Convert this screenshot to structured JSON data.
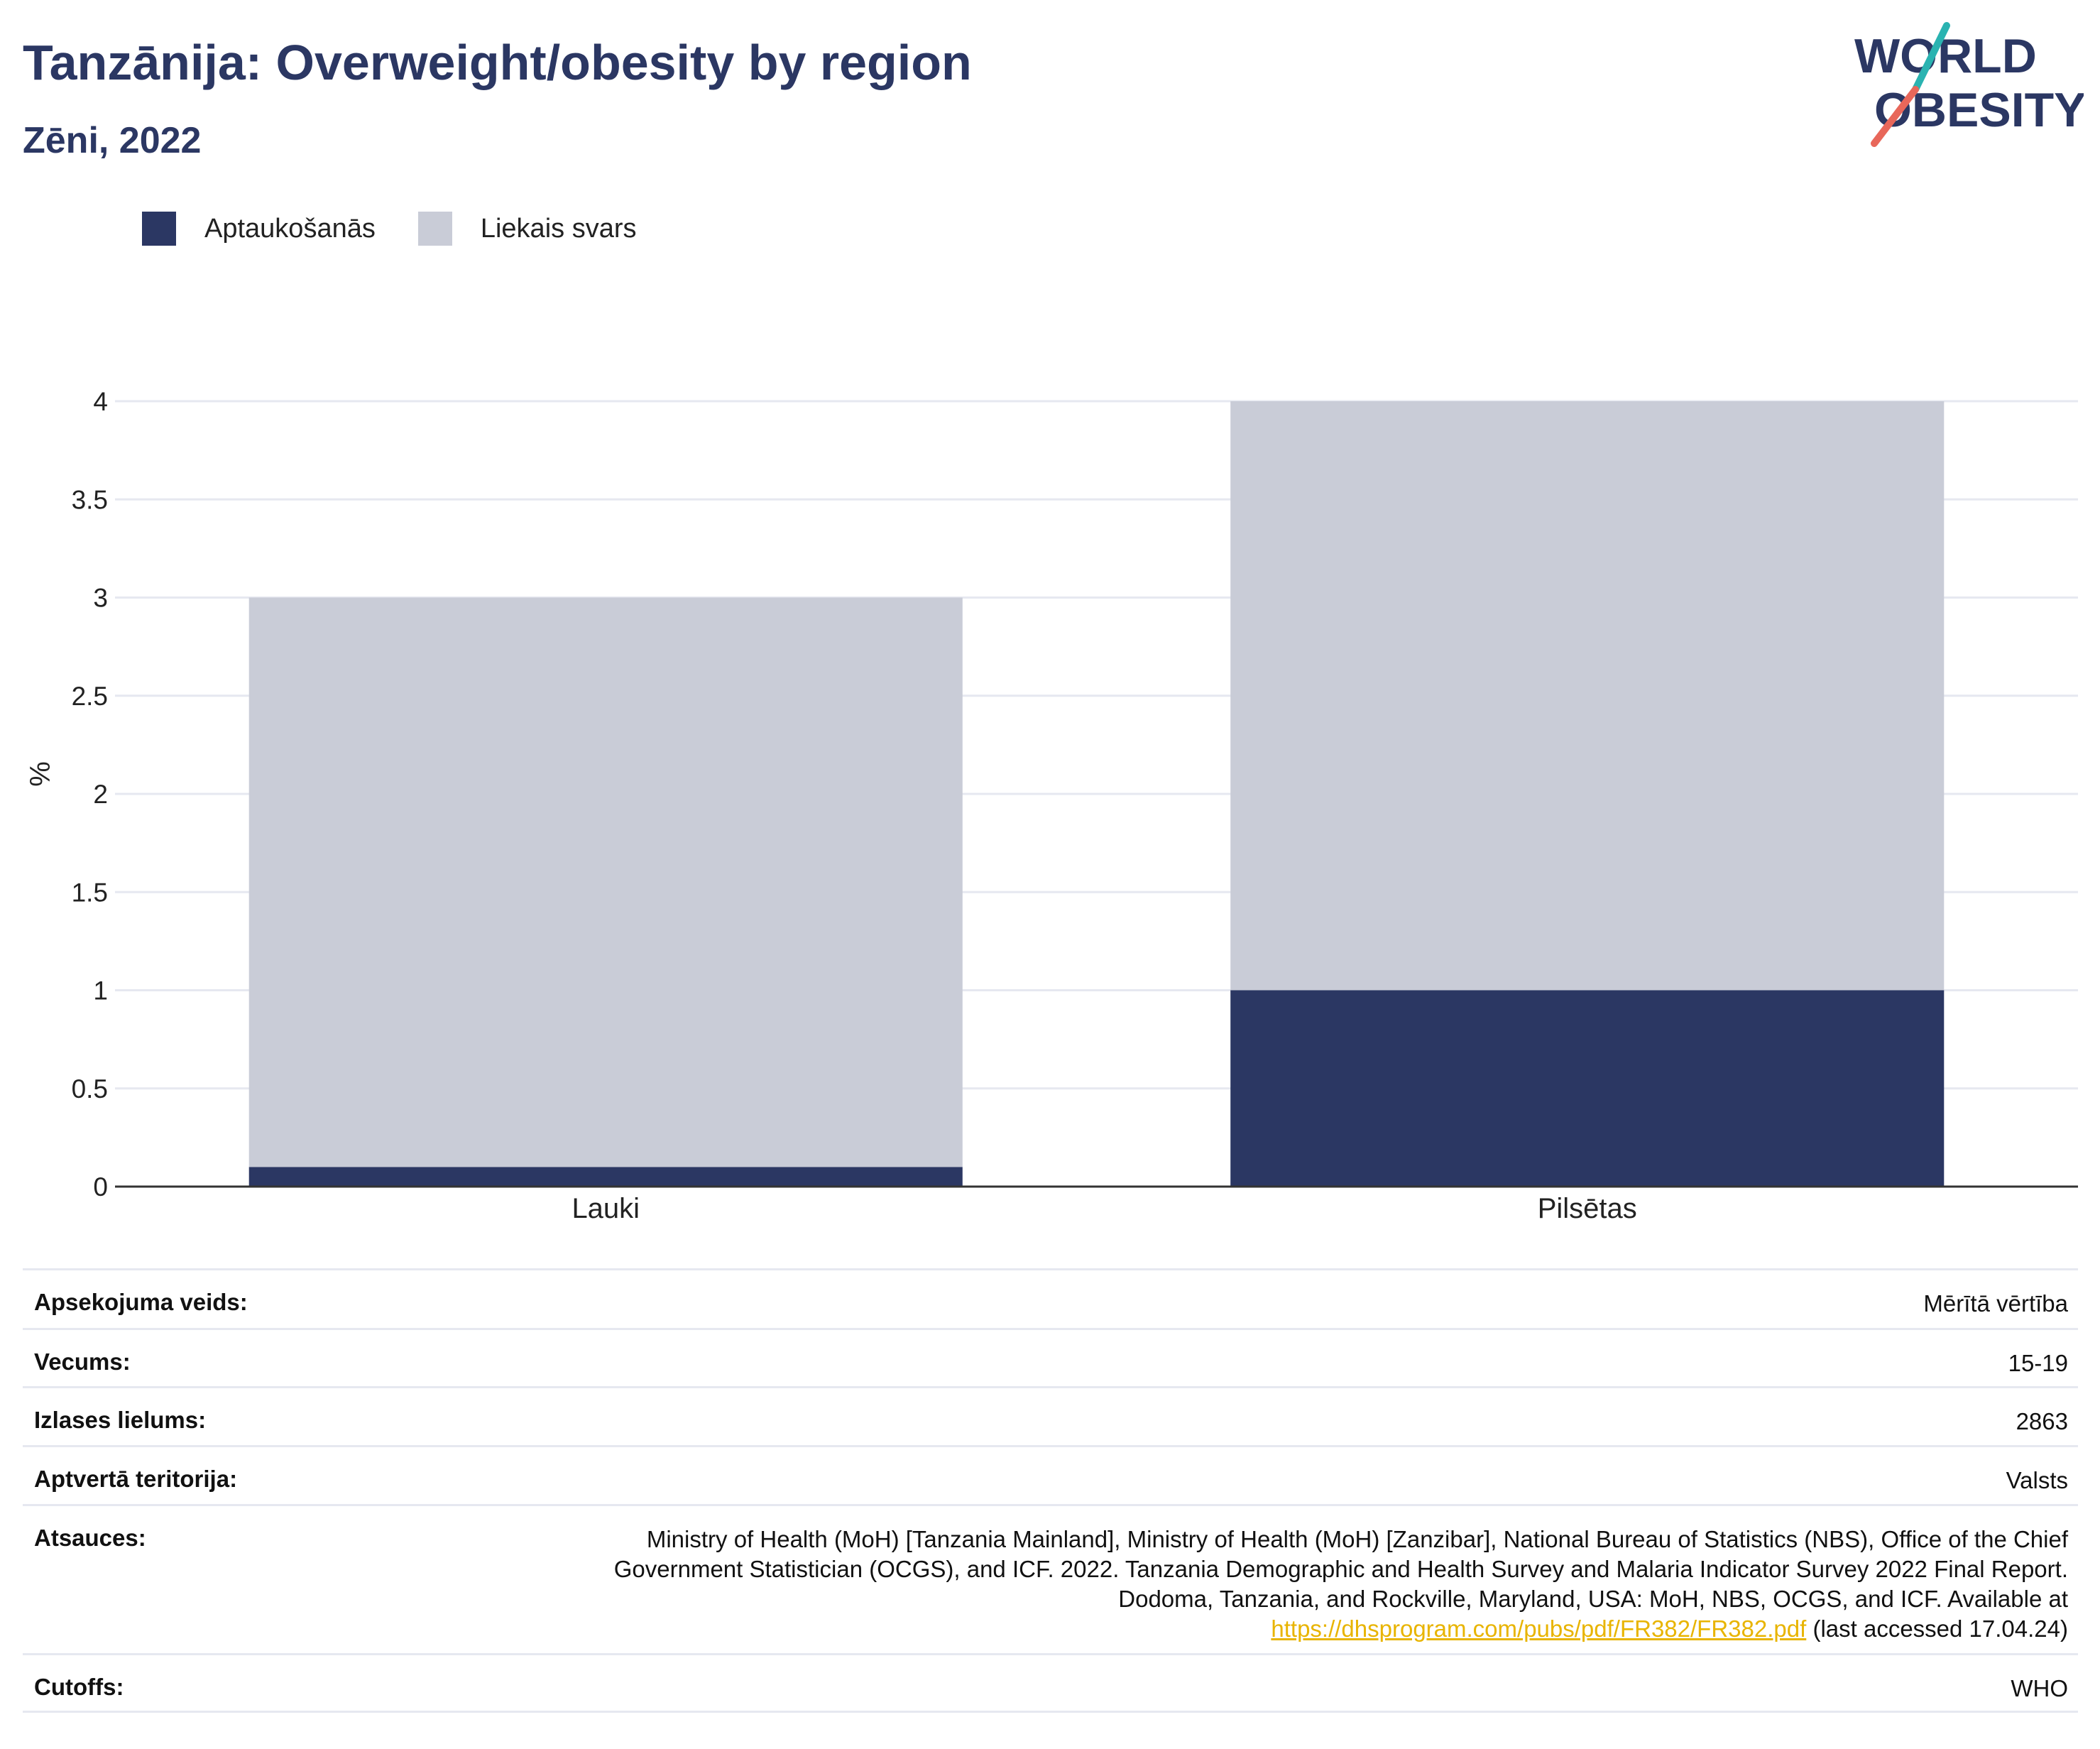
{
  "header": {
    "title": "Tanzānija: Overweight/obesity by region",
    "subtitle": "Zēni, 2022"
  },
  "logo": {
    "line1": "WORLD",
    "line2": "OBESITY",
    "colors": {
      "text": "#2b3763",
      "slash_top": "#2ab3b1",
      "slash_bottom": "#e8675a"
    }
  },
  "chart_data": {
    "type": "bar",
    "stacked": true,
    "categories": [
      "Lauki",
      "Pilsētas"
    ],
    "series": [
      {
        "name": "Aptaukošanās",
        "values": [
          0.1,
          1.0
        ],
        "color": "#2b3763"
      },
      {
        "name": "Liekais svars",
        "values": [
          2.9,
          3.0
        ],
        "color": "#c9ccd7"
      }
    ],
    "ylabel": "%",
    "ylim": [
      0,
      4
    ],
    "yticks": [
      "0",
      "0.5",
      "1",
      "1.5",
      "2",
      "2.5",
      "3",
      "3.5",
      "4"
    ],
    "grid": true,
    "legend_position": "top-left"
  },
  "info": {
    "rows": [
      {
        "label": "Apsekojuma veids:",
        "value": "Mērītā vērtība"
      },
      {
        "label": "Vecums:",
        "value": "15-19"
      },
      {
        "label": "Izlases lielums:",
        "value": "2863"
      },
      {
        "label": "Aptvertā teritorija:",
        "value": "Valsts"
      }
    ],
    "references": {
      "label": "Atsauces:",
      "text": "Ministry of Health (MoH) [Tanzania Mainland], Ministry of Health (MoH) [Zanzibar], National Bureau of Statistics (NBS), Office of the Chief Government Statistician (OCGS), and ICF. 2022. Tanzania Demographic and Health Survey and Malaria Indicator Survey 2022 Final Report. Dodoma, Tanzania, and Rockville, Maryland, USA: MoH, NBS, OCGS, and ICF. Available at",
      "link": "https://dhsprogram.com/pubs/pdf/FR382/FR382.pdf",
      "suffix": "(last accessed 17.04.24)"
    },
    "cutoffs": {
      "label": "Cutoffs:",
      "value": "WHO"
    }
  }
}
